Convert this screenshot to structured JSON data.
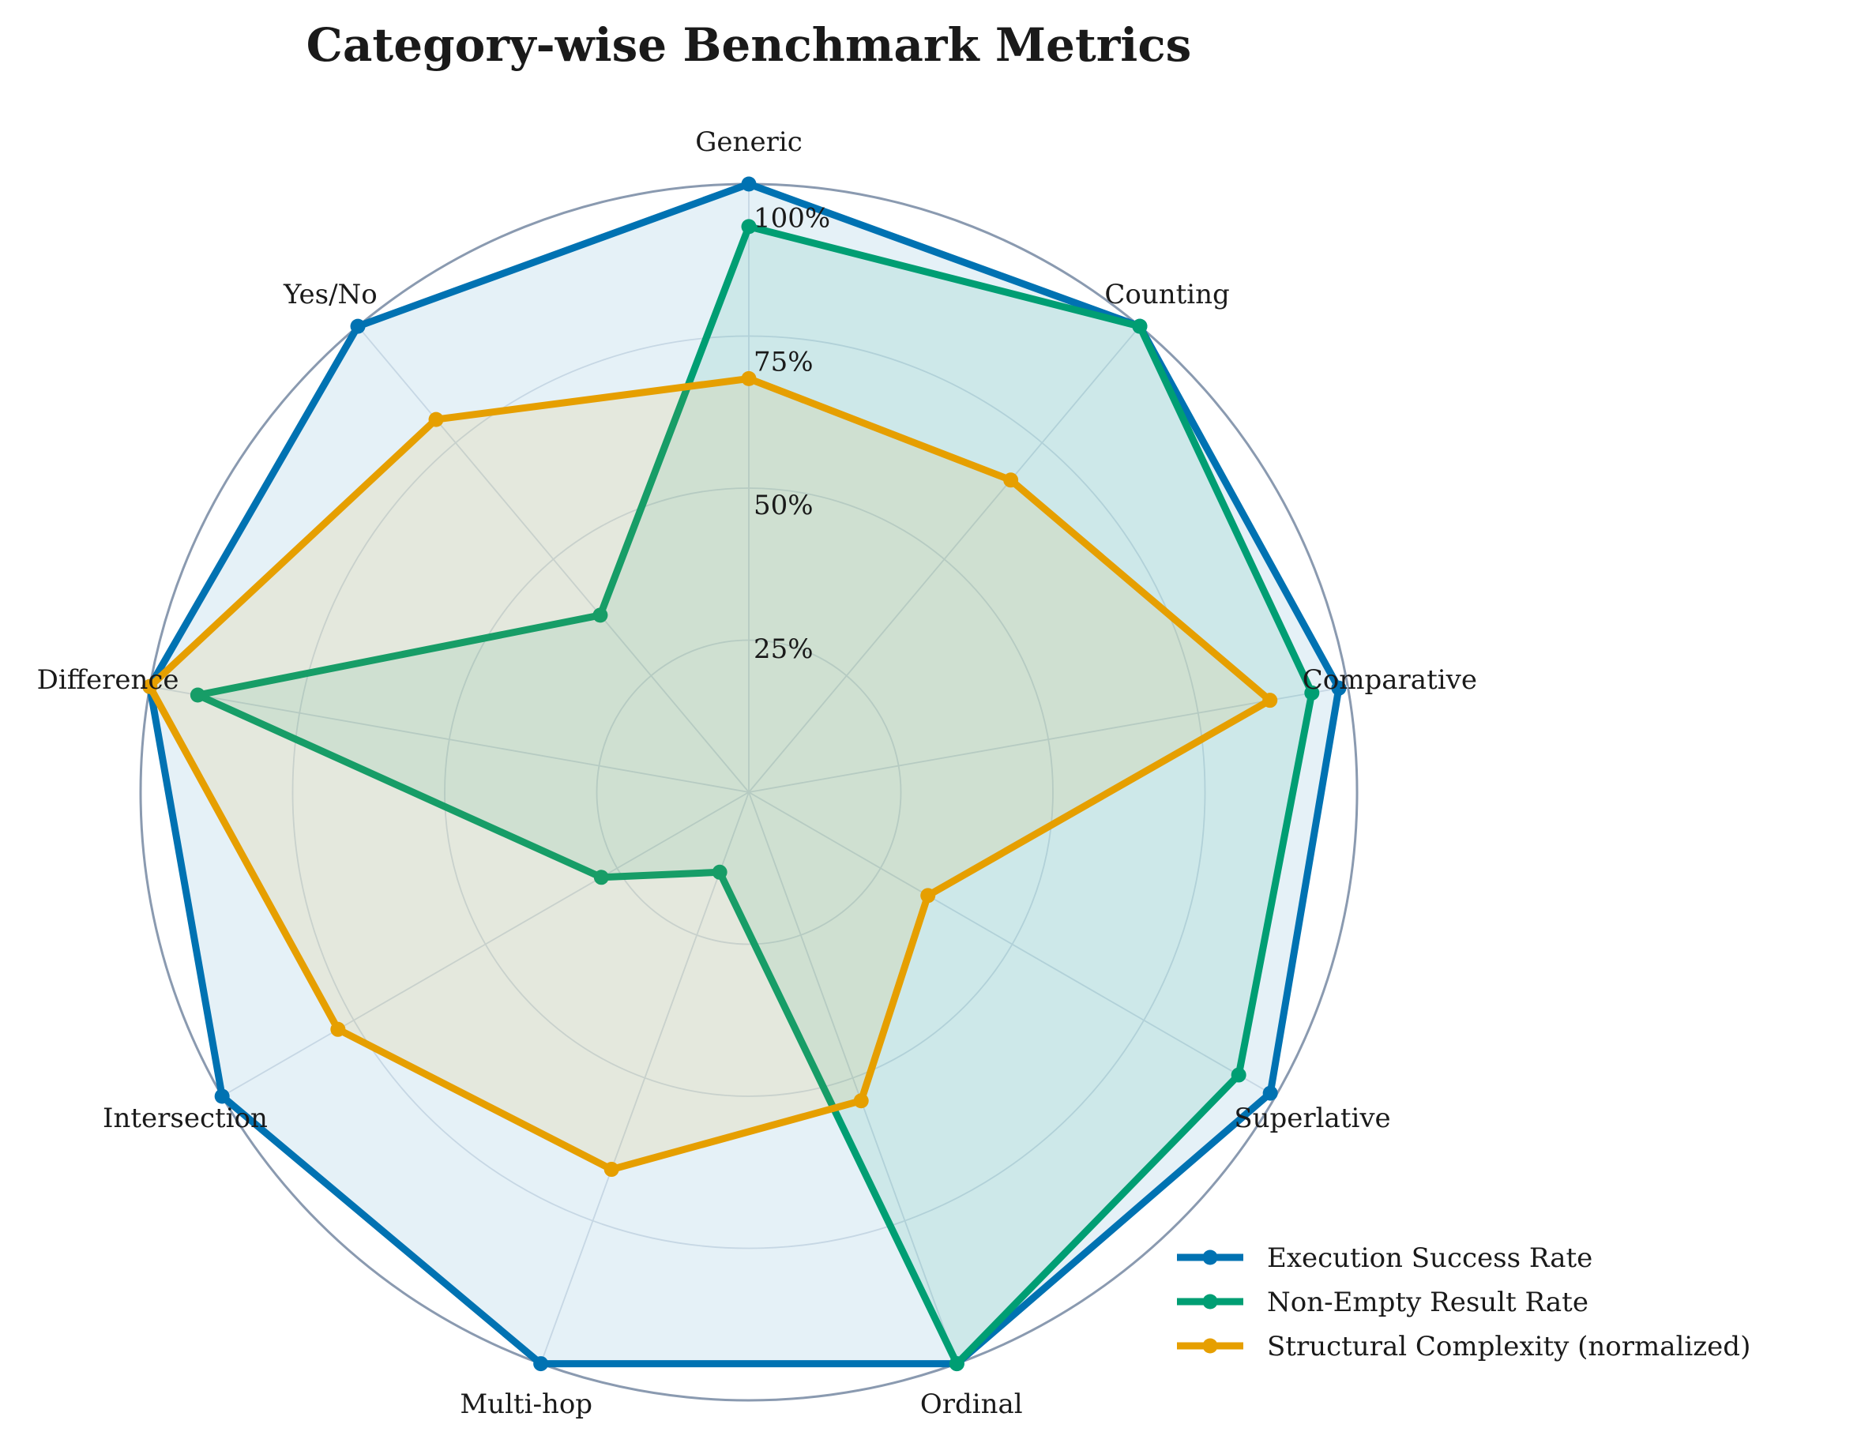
{
  "chart_data": {
    "type": "radar",
    "title": "Category-wise Benchmark Metrics",
    "categories": [
      "Generic",
      "Counting",
      "Comparative",
      "Superlative",
      "Ordinal",
      "Multi-hop",
      "Intersection",
      "Difference",
      "Yes/No"
    ],
    "radial_ticks": [
      {
        "value": 25,
        "label": "25%"
      },
      {
        "value": 50,
        "label": "50%"
      },
      {
        "value": 75,
        "label": "75%"
      },
      {
        "value": 100,
        "label": "100%"
      }
    ],
    "rlim": [
      0,
      100
    ],
    "grid": true,
    "legend_position": "bottom-right",
    "series": [
      {
        "name": "Execution Success Rate",
        "color": "#0072B2",
        "fill": true,
        "values": [
          100,
          100,
          98.5,
          99,
          100,
          100,
          100,
          100,
          100
        ]
      },
      {
        "name": "Non-Empty Result Rate",
        "color": "#009E73",
        "fill": true,
        "values": [
          93,
          100,
          94,
          93,
          100,
          14,
          28,
          92,
          38
        ]
      },
      {
        "name": "Structural Complexity (normalized)",
        "color": "#E69F00",
        "fill": true,
        "values": [
          68,
          67,
          87,
          34,
          54,
          66,
          78,
          100,
          80
        ]
      }
    ]
  }
}
